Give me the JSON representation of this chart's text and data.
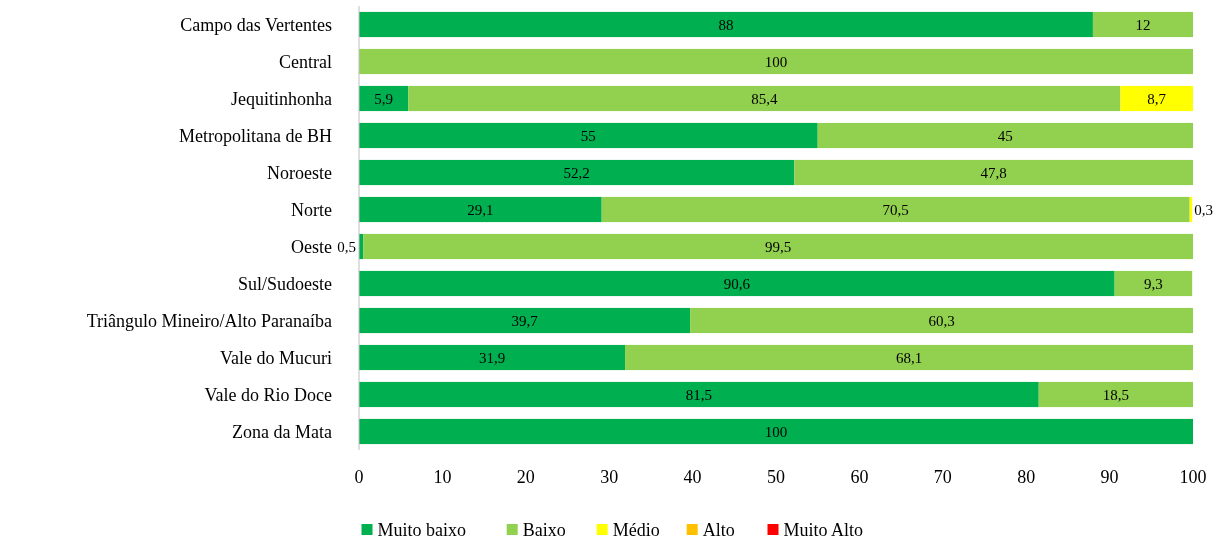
{
  "chart_data": {
    "type": "bar",
    "orientation": "horizontal",
    "stacked": true,
    "legend": "bottom",
    "categories": [
      "Campo das Vertentes",
      "Central",
      "Jequitinhonha",
      "Metropolitana de BH",
      "Noroeste",
      "Norte",
      "Oeste",
      "Sul/Sudoeste",
      "Triângulo Mineiro/Alto Paranaíba",
      "Vale do Mucuri",
      "Vale do Rio Doce",
      "Zona da Mata"
    ],
    "xlim": [
      0,
      100
    ],
    "xticks": [
      0,
      10,
      20,
      30,
      40,
      50,
      60,
      70,
      80,
      90,
      100
    ],
    "series": [
      {
        "name": "Muito baixo",
        "color": "#00b050",
        "values": [
          88,
          null,
          5.9,
          55,
          52.2,
          29.1,
          0.5,
          90.6,
          39.7,
          31.9,
          81.5,
          100
        ],
        "value_labels": [
          "88",
          null,
          "5,9",
          "55",
          "52,2",
          "29,1",
          "0,5",
          "90,6",
          "39,7",
          "31,9",
          "81,5",
          "100"
        ]
      },
      {
        "name": "Baixo",
        "color": "#92d050",
        "values": [
          12,
          100,
          85.4,
          45,
          47.8,
          70.5,
          99.5,
          9.3,
          60.3,
          68.1,
          18.5,
          null
        ],
        "value_labels": [
          "12",
          "100",
          "85,4",
          "45",
          "47,8",
          "70,5",
          "99,5",
          "9,3",
          "60,3",
          "68,1",
          "18,5",
          null
        ]
      },
      {
        "name": "Médio",
        "color": "#ffff00",
        "values": [
          null,
          null,
          8.7,
          null,
          null,
          0.3,
          null,
          null,
          null,
          null,
          null,
          null
        ],
        "value_labels": [
          null,
          null,
          "8,7",
          null,
          null,
          "0,3",
          null,
          null,
          null,
          null,
          null,
          null
        ]
      },
      {
        "name": "Alto",
        "color": "#ffc000",
        "values": [
          null,
          null,
          null,
          null,
          null,
          null,
          null,
          null,
          null,
          null,
          null,
          null
        ]
      },
      {
        "name": "Muito Alto",
        "color": "#ff0000",
        "values": [
          null,
          null,
          null,
          null,
          null,
          null,
          null,
          null,
          null,
          null,
          null,
          null
        ]
      }
    ]
  }
}
